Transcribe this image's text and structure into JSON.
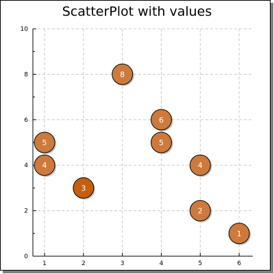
{
  "chart_data": {
    "type": "scatter",
    "title": "ScatterPlot with values",
    "xlabel": "",
    "ylabel": "",
    "xlim": [
      0.7,
      6.35
    ],
    "ylim": [
      0,
      10
    ],
    "x_ticks": [
      1,
      2,
      3,
      4,
      5,
      6
    ],
    "y_ticks": [
      0,
      2,
      4,
      6,
      8,
      10
    ],
    "grid": true,
    "points": [
      {
        "x": 1,
        "y": 5,
        "value": "5"
      },
      {
        "x": 1,
        "y": 4,
        "value": "4"
      },
      {
        "x": 2,
        "y": 3,
        "value": "3"
      },
      {
        "x": 3,
        "y": 8,
        "value": "8"
      },
      {
        "x": 4,
        "y": 6,
        "value": "6"
      },
      {
        "x": 4,
        "y": 5,
        "value": "5"
      },
      {
        "x": 5,
        "y": 4,
        "value": "4"
      },
      {
        "x": 5,
        "y": 2,
        "value": "2"
      },
      {
        "x": 6,
        "y": 1,
        "value": "1"
      }
    ],
    "colors": {
      "marker_fill": "#cd7a3c",
      "highlight_fill": "#c45e10",
      "marker_stroke": "#000000",
      "grid": "#c8c8c8",
      "axis": "#000000"
    }
  }
}
